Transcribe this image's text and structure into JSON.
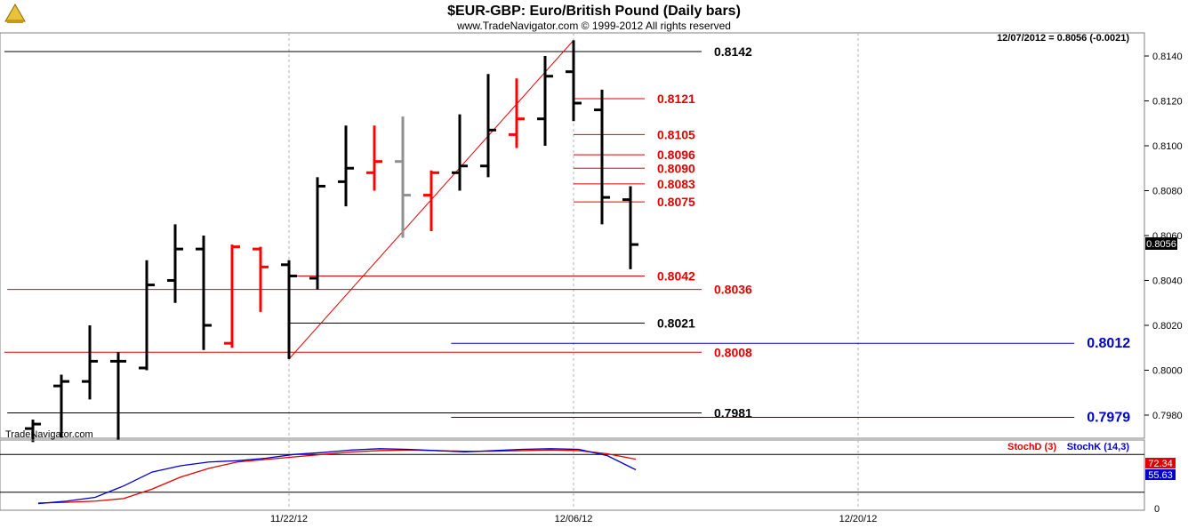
{
  "header": {
    "title": "$EUR-GBP:  Euro/British Pound  (Daily bars)",
    "subtitle": "www.TradeNavigator.com © 1999-2012 All rights reserved",
    "last_quote": "12/07/2012 = 0.8056 (-0.0021)",
    "watermark": "TradeNavigator.com"
  },
  "colors": {
    "bar_black": "#000000",
    "bar_red": "#ff0000",
    "bar_gray": "#909090",
    "level_red": "#e00000",
    "level_blue": "#0000cc",
    "stoch_d": "#e00000",
    "stoch_k": "#0000cc"
  },
  "chart_data": {
    "type": "ohlc",
    "title": "$EUR-GBP:  Euro/British Pound  (Daily bars)",
    "ylim": [
      0.797,
      0.815
    ],
    "y_ticks": [
      "0.8140",
      "0.8120",
      "0.8100",
      "0.8080",
      "0.8060",
      "0.8040",
      "0.8020",
      "0.8000",
      "0.7980"
    ],
    "y_tick_values": [
      0.814,
      0.812,
      0.81,
      0.808,
      0.806,
      0.804,
      0.802,
      0.8,
      0.798
    ],
    "x_ticks": [
      "11/22/12",
      "12/06/12",
      "12/20/12"
    ],
    "x_tick_bar_index": [
      9,
      19,
      29
    ],
    "last_price_label": "0.8056",
    "bars": [
      {
        "o": 0.7974,
        "h": 0.7978,
        "l": 0.7968,
        "c": 0.7976,
        "color": "black"
      },
      {
        "o": 0.7993,
        "h": 0.7998,
        "l": 0.797,
        "c": 0.7995,
        "color": "black"
      },
      {
        "o": 0.7995,
        "h": 0.802,
        "l": 0.7987,
        "c": 0.8004,
        "color": "black"
      },
      {
        "o": 0.8004,
        "h": 0.8008,
        "l": 0.7969,
        "c": 0.8004,
        "color": "black"
      },
      {
        "o": 0.8001,
        "h": 0.8049,
        "l": 0.8,
        "c": 0.8038,
        "color": "black"
      },
      {
        "o": 0.804,
        "h": 0.8065,
        "l": 0.803,
        "c": 0.8054,
        "color": "black"
      },
      {
        "o": 0.8054,
        "h": 0.806,
        "l": 0.8009,
        "c": 0.802,
        "color": "black"
      },
      {
        "o": 0.8012,
        "h": 0.8056,
        "l": 0.801,
        "c": 0.8055,
        "color": "red"
      },
      {
        "o": 0.8054,
        "h": 0.8055,
        "l": 0.8026,
        "c": 0.8046,
        "color": "red"
      },
      {
        "o": 0.8047,
        "h": 0.8049,
        "l": 0.8005,
        "c": 0.8042,
        "color": "black"
      },
      {
        "o": 0.8041,
        "h": 0.8086,
        "l": 0.8036,
        "c": 0.8082,
        "color": "black"
      },
      {
        "o": 0.8084,
        "h": 0.8109,
        "l": 0.8073,
        "c": 0.809,
        "color": "black"
      },
      {
        "o": 0.8088,
        "h": 0.8109,
        "l": 0.808,
        "c": 0.8093,
        "color": "red"
      },
      {
        "o": 0.8093,
        "h": 0.8113,
        "l": 0.8059,
        "c": 0.8078,
        "color": "gray"
      },
      {
        "o": 0.8078,
        "h": 0.8089,
        "l": 0.8062,
        "c": 0.8088,
        "color": "red"
      },
      {
        "o": 0.8088,
        "h": 0.8114,
        "l": 0.808,
        "c": 0.8091,
        "color": "black"
      },
      {
        "o": 0.8091,
        "h": 0.8132,
        "l": 0.8086,
        "c": 0.8107,
        "color": "black"
      },
      {
        "o": 0.8105,
        "h": 0.813,
        "l": 0.8099,
        "c": 0.8112,
        "color": "red"
      },
      {
        "o": 0.8112,
        "h": 0.814,
        "l": 0.81,
        "c": 0.8131,
        "color": "black"
      },
      {
        "o": 0.8133,
        "h": 0.8147,
        "l": 0.8111,
        "c": 0.8119,
        "color": "black"
      },
      {
        "o": 0.8116,
        "h": 0.8125,
        "l": 0.8065,
        "c": 0.8077,
        "color": "black"
      },
      {
        "o": 0.8076,
        "h": 0.8082,
        "l": 0.8045,
        "c": 0.8056,
        "color": "black"
      }
    ],
    "trendline": {
      "from_bar": 9,
      "from_price": 0.8005,
      "to_bar": 19,
      "to_price": 0.8147
    },
    "levels": [
      {
        "value": 0.8142,
        "label": "0.8142",
        "color": "black",
        "from_bar": -1,
        "to_bar": 23.5
      },
      {
        "value": 0.8121,
        "label": "0.8121",
        "color": "red",
        "from_bar": 19,
        "to_bar": 21.5
      },
      {
        "value": 0.8105,
        "label": "0.8105",
        "color": "red",
        "from_bar": 19,
        "to_bar": 21.5
      },
      {
        "value": 0.8096,
        "label": "0.8096",
        "color": "red",
        "from_bar": 19,
        "to_bar": 21.5
      },
      {
        "value": 0.809,
        "label": "0.8090",
        "color": "red",
        "from_bar": 19,
        "to_bar": 21.5
      },
      {
        "value": 0.8083,
        "label": "0.8083",
        "color": "red",
        "from_bar": 19,
        "to_bar": 21.5
      },
      {
        "value": 0.8075,
        "label": "0.8075",
        "color": "red",
        "from_bar": 19,
        "to_bar": 21.5
      },
      {
        "value": 0.8042,
        "label": "0.8042",
        "color": "red",
        "from_bar": 9,
        "to_bar": 21.5
      },
      {
        "value": 0.8036,
        "label": "0.8036",
        "color": "red",
        "from_bar": -0.9,
        "to_bar": 23.5
      },
      {
        "value": 0.8021,
        "label": "0.8021",
        "color": "black",
        "from_bar": 9,
        "to_bar": 21.5
      },
      {
        "value": 0.8012,
        "label": "0.8012",
        "color": "blue",
        "from_bar": 14.7,
        "to_bar": 36.6,
        "big": true
      },
      {
        "value": 0.8008,
        "label": "0.8008",
        "color": "red",
        "from_bar": -1,
        "to_bar": 23.5
      },
      {
        "value": 0.7981,
        "label": "0.7981",
        "color": "black",
        "from_bar": -0.9,
        "to_bar": 23.5
      },
      {
        "value": 0.7979,
        "label": "0.7979",
        "color": "blue",
        "from_bar": 14.7,
        "to_bar": 36.6,
        "big": true
      }
    ],
    "stochastic": {
      "d_label": "StochD (3)",
      "k_label": "StochK (14,3)",
      "d_last": "72.34",
      "k_last": "55.63",
      "ylim": [
        0,
        100
      ],
      "y_ticks": [
        "0"
      ],
      "levels": [
        80,
        20
      ],
      "d": [
        3,
        4,
        6,
        10,
        25,
        44,
        58,
        68,
        72,
        76,
        80,
        84,
        86,
        87,
        86,
        85,
        85,
        86,
        87,
        86,
        81,
        72.34
      ],
      "k": [
        2,
        6,
        12,
        30,
        52,
        62,
        68,
        70,
        74,
        80,
        83,
        87,
        89,
        88,
        86,
        84,
        86,
        88,
        89,
        88,
        78,
        55.63
      ]
    }
  }
}
